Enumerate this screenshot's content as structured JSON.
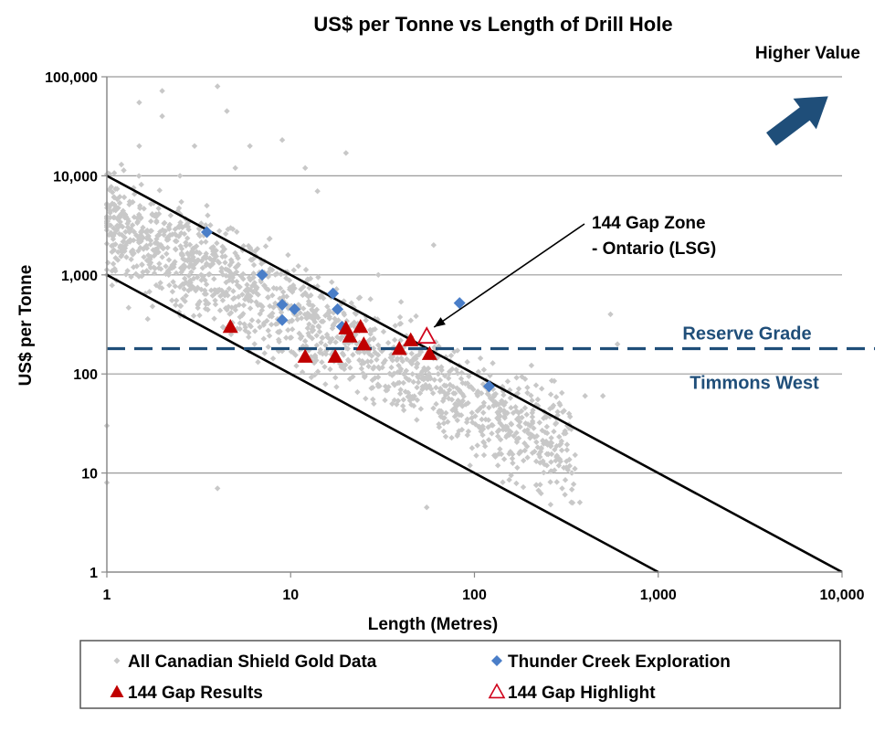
{
  "chart_data": {
    "type": "scatter",
    "title": "US$ per Tonne vs Length of Drill Hole",
    "xlabel": "Length (Metres)",
    "ylabel": "US$ per Tonne",
    "xscale": "log",
    "yscale": "log",
    "xlim": [
      1,
      10000
    ],
    "ylim": [
      1,
      100000
    ],
    "x_ticks": [
      1,
      10,
      100,
      1000,
      10000
    ],
    "x_tick_labels": [
      "1",
      "10",
      "100",
      "1,000",
      "10,000"
    ],
    "y_ticks": [
      1,
      10,
      100,
      1000,
      10000,
      100000
    ],
    "y_tick_labels": [
      "1",
      "10",
      "100",
      "1,000",
      "10,000",
      "100,000"
    ],
    "grid": "horizontal",
    "legend_position": "bottom",
    "corner_label": "Higher Value",
    "series": [
      {
        "name": "All Canadian Shield Gold Data",
        "marker": "diamond",
        "color": "#c8c8c8",
        "approx_count": 1500,
        "points": [
          [
            1,
            8
          ],
          [
            1,
            30
          ],
          [
            1,
            1000
          ],
          [
            1.2,
            13000
          ],
          [
            1.5,
            55000
          ],
          [
            1.5,
            20000
          ],
          [
            2,
            72000
          ],
          [
            2,
            40000
          ],
          [
            2.5,
            10000
          ],
          [
            3,
            20000
          ],
          [
            3.5,
            5000
          ],
          [
            4,
            80000
          ],
          [
            4.5,
            45000
          ],
          [
            4,
            7
          ],
          [
            5,
            12000
          ],
          [
            6,
            20000
          ],
          [
            9,
            23000
          ],
          [
            12,
            12000
          ],
          [
            14,
            7000
          ],
          [
            20,
            17000
          ],
          [
            30,
            1000
          ],
          [
            55,
            4.5
          ],
          [
            60,
            2000
          ],
          [
            300,
            7
          ],
          [
            400,
            60
          ],
          [
            500,
            60
          ],
          [
            550,
            400
          ],
          [
            600,
            200
          ],
          [
            320,
            30
          ],
          [
            250,
            20
          ]
        ]
      },
      {
        "name": "Thunder Creek Exploration",
        "marker": "diamond",
        "color": "#4a7ec8",
        "points": [
          [
            3.5,
            2700
          ],
          [
            7,
            1000
          ],
          [
            9,
            500
          ],
          [
            9,
            350
          ],
          [
            10.5,
            450
          ],
          [
            17,
            650
          ],
          [
            18,
            450
          ],
          [
            19,
            300
          ],
          [
            83,
            520
          ],
          [
            120,
            75
          ]
        ]
      },
      {
        "name": "144 Gap Results",
        "marker": "triangle",
        "color": "#c00000",
        "points": [
          [
            4.7,
            300
          ],
          [
            12,
            150
          ],
          [
            17.5,
            150
          ],
          [
            20,
            290
          ],
          [
            21,
            240
          ],
          [
            24,
            300
          ],
          [
            25,
            200
          ],
          [
            39,
            180
          ],
          [
            45,
            220
          ],
          [
            57,
            160
          ]
        ]
      },
      {
        "name": "144 Gap Highlight",
        "marker": "triangle-open",
        "color": "#d0021b",
        "points": [
          [
            55,
            240
          ]
        ]
      }
    ],
    "lines": [
      {
        "from": [
          1,
          10000
        ],
        "to": [
          10000,
          1
        ],
        "color": "#000000"
      },
      {
        "from": [
          1,
          1000
        ],
        "to": [
          1000,
          1
        ],
        "color": "#000000"
      }
    ],
    "reference_lines": [
      {
        "y": 180,
        "style": "dashed",
        "color": "#1f4e79",
        "label_above": "Reserve Grade",
        "label_below": "Timmons West"
      }
    ],
    "annotations": [
      {
        "text": [
          "144 Gap  Zone",
          "- Ontario (LSG)"
        ],
        "arrow_to": [
          55,
          240
        ]
      }
    ],
    "arrow_icon": "arrow-up-right-icon",
    "arrow_color": "#1f4e79"
  }
}
